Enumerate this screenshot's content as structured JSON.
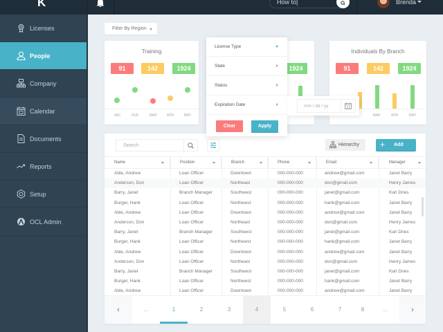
{
  "topbar": {
    "logo": "K",
    "search_value": "How to|",
    "user_name": "Brenda"
  },
  "sidebar": {
    "items": [
      {
        "label": "Licenses",
        "icon": "award-icon"
      },
      {
        "label": "People",
        "icon": "user-icon",
        "active": true
      },
      {
        "label": "Company",
        "icon": "org-chart-icon"
      },
      {
        "label": "Calendar",
        "icon": "calendar-icon"
      },
      {
        "label": "Documents",
        "icon": "document-icon"
      },
      {
        "label": "Reports",
        "icon": "trend-icon"
      },
      {
        "label": "Setup",
        "icon": "settings-icon"
      },
      {
        "label": "OCL Admin",
        "icon": "admin-icon"
      }
    ]
  },
  "filter_region": {
    "label": "Filter By Region"
  },
  "cards": [
    {
      "title": "Training",
      "stats": [
        "91",
        "142",
        "1924"
      ],
      "months": [
        "JAN",
        "FEB",
        "MAR",
        "APR",
        "MAY"
      ]
    },
    {
      "title": "",
      "stats": [
        "91",
        "142",
        "1924"
      ],
      "months": [
        "JAN",
        "FEB",
        "MAR",
        "APR",
        "MAY"
      ]
    },
    {
      "title": "Individuals By Branch",
      "stats": [
        "91",
        "142",
        "1924"
      ],
      "months": [
        "JAN",
        "FEB",
        "MAR",
        "APR",
        "MAY"
      ]
    }
  ],
  "colors": {
    "accent": "#48b2c8",
    "red": "#fb7b7c",
    "yellow": "#fccb62",
    "green": "#83d981",
    "sidebar": "#2f4353",
    "topbar": "#1f2d38"
  },
  "filter_dropdown": {
    "items": [
      "License Type",
      "State",
      "Status",
      "Expiration Date"
    ],
    "clear_label": "Clear",
    "apply_label": "Apply",
    "date_placeholder": "mm / dd / yy"
  },
  "table": {
    "search_placeholder": "Search",
    "hierarchy_label": "Hierarchy",
    "add_label": "Add",
    "columns": [
      "Name",
      "Position",
      "Branch",
      "Phone",
      "Email",
      "Manager"
    ],
    "rows": [
      [
        "Able, Andrew",
        "Loan Officer",
        "Downtown",
        "000-000-000",
        "andrew@gmail.com",
        "Janet Barry"
      ],
      [
        "Anderson, Don",
        "Loan Officer",
        "Northeast",
        "000-000-000",
        "don@gmail.com",
        "Henry James"
      ],
      [
        "Barry, Janet",
        "Branch Manager",
        "Southwest",
        "000-000-000",
        "janet@gmail.com",
        "Karl Dries"
      ],
      [
        "Burger, Hank",
        "Loan Officer",
        "Northwest",
        "000-000-000",
        "hank@gmail.com",
        "Janet Barry"
      ],
      [
        "Able, Andrew",
        "Loan Officer",
        "Downtown",
        "000-000-000",
        "andrew@gmail.com",
        "Janet Barry"
      ],
      [
        "Anderson, Don",
        "Loan Officer",
        "Northeast",
        "000-000-000",
        "don@gmail.com",
        "Henry James"
      ],
      [
        "Barry, Janet",
        "Branch Manager",
        "Southwest",
        "000-000-000",
        "janet@gmail.com",
        "Karl Dries"
      ],
      [
        "Burger, Hank",
        "Loan Officer",
        "Northwest",
        "000-000-000",
        "hank@gmail.com",
        "Janet Barry"
      ],
      [
        "Able, Andrew",
        "Loan Officer",
        "Downtown",
        "000-000-000",
        "andrew@gmail.com",
        "Janet Barry"
      ],
      [
        "Anderson, Don",
        "Loan Officer",
        "Northeast",
        "000-000-000",
        "don@gmail.com",
        "Henry James"
      ],
      [
        "Barry, Janet",
        "Branch Manager",
        "Southwest",
        "000-000-000",
        "janet@gmail.com",
        "Karl Dries"
      ],
      [
        "Burger, Hank",
        "Loan Officer",
        "Northwest",
        "000-000-000",
        "hank@gmail.com",
        "Janet Barry"
      ],
      [
        "Able, Andrew",
        "Loan Officer",
        "Downtown",
        "000-000-000",
        "andrew@gmail.com",
        "Janet Barry"
      ]
    ]
  },
  "pagination": {
    "prev": "‹",
    "next": "›",
    "pages": [
      "...",
      "1",
      "2",
      "3",
      "4",
      "5",
      "6",
      "7",
      "8",
      "..."
    ],
    "current": "1"
  }
}
